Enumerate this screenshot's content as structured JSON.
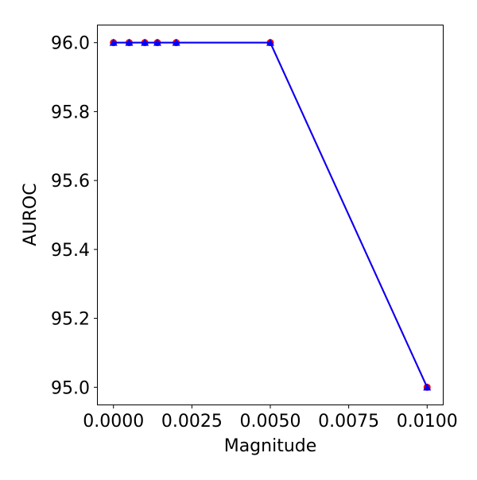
{
  "chart_data": {
    "type": "line",
    "title": "",
    "xlabel": "Magnitude",
    "ylabel": "AUROC",
    "xlim": [
      -0.0005,
      0.0105
    ],
    "ylim": [
      94.95,
      96.05
    ],
    "x_ticks": [
      0.0,
      0.0025,
      0.005,
      0.0075,
      0.01
    ],
    "x_tick_labels": [
      "0.0000",
      "0.0025",
      "0.0050",
      "0.0075",
      "0.0100"
    ],
    "y_ticks": [
      95.0,
      95.2,
      95.4,
      95.6,
      95.8,
      96.0
    ],
    "y_tick_labels": [
      "95.0",
      "95.2",
      "95.4",
      "95.6",
      "95.8",
      "96.0"
    ],
    "grid": false,
    "legend": "none",
    "series": [
      {
        "color": "#ff0000",
        "marker": "circle",
        "x": [
          0.0,
          0.0005,
          0.001,
          0.0014,
          0.002,
          0.005,
          0.01
        ],
        "y": [
          96.0,
          96.0,
          96.0,
          96.0,
          96.0,
          96.0,
          95.0
        ]
      },
      {
        "color": "#0000ff",
        "marker": "triangle",
        "x": [
          0.0,
          0.0005,
          0.001,
          0.0014,
          0.002,
          0.005,
          0.01
        ],
        "y": [
          96.0,
          96.0,
          96.0,
          96.0,
          96.0,
          96.0,
          95.0
        ]
      }
    ]
  }
}
